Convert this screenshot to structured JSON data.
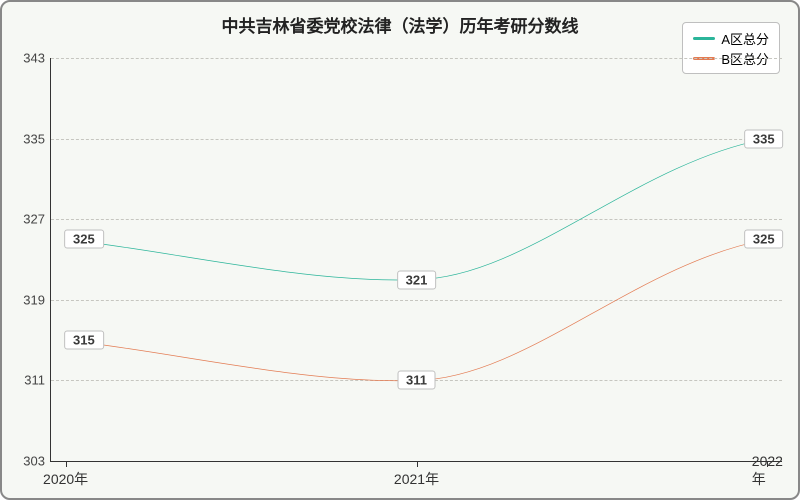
{
  "chart": {
    "type": "line",
    "title": "中共吉林省委党校法律（法学）历年考研分数线",
    "title_fontsize": 17,
    "background_color": "#f6f8f4",
    "border_color": "#888888",
    "axis_color": "#333333",
    "grid_color": "#c6c6c0",
    "grid_dashed": true,
    "tick_fontsize": 13,
    "xlabel_fontsize": 14,
    "ylim": [
      303,
      343
    ],
    "ytick_step": 8,
    "yticks": [
      303,
      311,
      319,
      327,
      335,
      343
    ],
    "x_categories": [
      "2020年",
      "2021年",
      "2022年"
    ],
    "x_positions_pct": [
      2,
      50,
      98
    ],
    "series": [
      {
        "name": "A区总分",
        "color": "#2bb59a",
        "line_width": 2,
        "values": [
          325,
          321,
          335
        ],
        "curve": "smooth"
      },
      {
        "name": "B区总分",
        "color": "#e37b52",
        "line_width": 2,
        "values": [
          315,
          311,
          325
        ],
        "curve": "smooth"
      }
    ],
    "legend": {
      "position": "top-right",
      "background": "#ffffff",
      "border_color": "#bfbfbf",
      "font_size": 13
    },
    "point_label": {
      "background": "#ffffff",
      "border_color": "#bfbfbf",
      "font_size": 13,
      "font_weight": "bold",
      "text_color": "#3a3a3a"
    }
  }
}
